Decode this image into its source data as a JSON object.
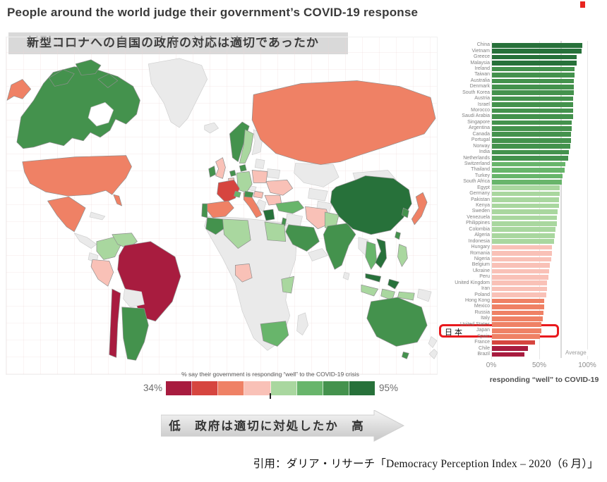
{
  "page": {
    "title": "People around the world judge their government’s COVID-19 response",
    "subtitle_ja": "新型コロナへの自国の政府の対応は適切であったか",
    "citation": "引用：ダリア・リサーチ「Democracy Perception Index – 2020（6 月）」"
  },
  "map_legend": {
    "title": "% say their government is responding “well” to the COVID-19 crisis",
    "min_label": "34%",
    "max_label": "95%",
    "no_data_color": "#eaeaea"
  },
  "arrow": {
    "label": "低　政府は適切に対処したか　高"
  },
  "palette": {
    "domain": [
      34,
      95
    ],
    "colors": [
      "#a81c3f",
      "#d6453f",
      "#ef8165",
      "#f9c1b7",
      "#a9d79f",
      "#68b56b",
      "#44924d",
      "#27713a"
    ]
  },
  "chart_data": {
    "type": "bar",
    "orientation": "horizontal",
    "title": "",
    "xlabel": "responding “well” to COVID-19",
    "ylabel": "",
    "xlim": [
      0,
      100
    ],
    "grid": true,
    "x_ticks": [
      {
        "label": "0%",
        "value": 0
      },
      {
        "label": "50%",
        "value": 50
      },
      {
        "label": "100%",
        "value": 100
      }
    ],
    "average": {
      "value": 72,
      "label": "Average"
    },
    "highlight": {
      "country": "Japan",
      "label": "日本",
      "color": "#e8191d"
    },
    "categories": [
      "China",
      "Vietnam",
      "Greece",
      "Malaysia",
      "Ireland",
      "Taiwan",
      "Australia",
      "Denmark",
      "South Korea",
      "Austria",
      "Israel",
      "Morocco",
      "Saudi Arabia",
      "Singapore",
      "Argentina",
      "Canada",
      "Portugal",
      "Norway",
      "India",
      "Netherlands",
      "Switzerland",
      "Thailand",
      "Turkey",
      "South Africa",
      "Egypt",
      "Germany",
      "Pakistan",
      "Kenya",
      "Sweden",
      "Venezuela",
      "Philippines",
      "Colombia",
      "Algeria",
      "Indonesia",
      "Hungary",
      "Romania",
      "Nigeria",
      "Belgium",
      "Ukraine",
      "Peru",
      "United Kingdom",
      "Iran",
      "Poland",
      "Hong Kong",
      "Mexico",
      "Russia",
      "Italy",
      "United States",
      "Japan",
      "Spain",
      "France",
      "Chile",
      "Brazil"
    ],
    "values": [
      95,
      94,
      89,
      89,
      87,
      87,
      86,
      86,
      86,
      85,
      85,
      85,
      85,
      84,
      84,
      83,
      83,
      82,
      81,
      80,
      77,
      76,
      74,
      73,
      71,
      71,
      70,
      70,
      69,
      68,
      68,
      67,
      66,
      65,
      63,
      63,
      62,
      61,
      60,
      59,
      58,
      58,
      57,
      55,
      55,
      54,
      53,
      52,
      52,
      50,
      45,
      38,
      34
    ]
  }
}
